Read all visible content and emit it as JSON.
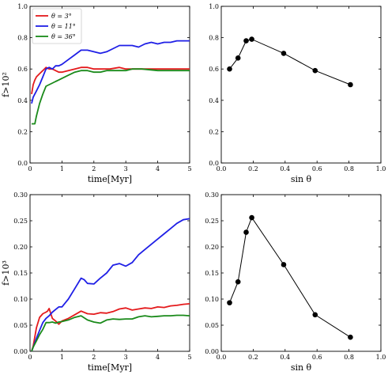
{
  "colors": {
    "red": "#e41a1c",
    "blue": "#1f1fe6",
    "green": "#1a8a1a",
    "black": "#000000"
  },
  "chart_data": [
    {
      "id": "top-left",
      "type": "line",
      "xlabel": "time[Myr]",
      "ylabel": "f>10²",
      "xlim": [
        0,
        5
      ],
      "ylim": [
        0,
        1.0
      ],
      "xticks": [
        0,
        1,
        2,
        3,
        4,
        5
      ],
      "xtick_labels": [
        "0",
        "1",
        "2",
        "3",
        "4",
        "5"
      ],
      "yticks": [
        0,
        0.2,
        0.4,
        0.6,
        0.8,
        1.0
      ],
      "ytick_labels": [
        "0.0",
        "0.2",
        "0.4",
        "0.6",
        "0.8",
        "1.0"
      ],
      "legend": "top-left",
      "series": [
        {
          "name": "θ = 3°",
          "color": "red",
          "x": [
            0.05,
            0.1,
            0.15,
            0.2,
            0.3,
            0.4,
            0.5,
            0.6,
            0.7,
            0.8,
            0.9,
            1.0,
            1.2,
            1.4,
            1.6,
            1.8,
            2.0,
            2.2,
            2.5,
            2.8,
            3.0,
            3.2,
            3.5,
            4.0,
            4.5,
            5.0
          ],
          "y": [
            0.44,
            0.5,
            0.53,
            0.55,
            0.57,
            0.59,
            0.61,
            0.6,
            0.6,
            0.59,
            0.58,
            0.58,
            0.59,
            0.6,
            0.61,
            0.61,
            0.6,
            0.6,
            0.6,
            0.61,
            0.6,
            0.6,
            0.6,
            0.6,
            0.6,
            0.6
          ]
        },
        {
          "name": "θ = 11°",
          "color": "blue",
          "x": [
            0.05,
            0.1,
            0.2,
            0.3,
            0.4,
            0.5,
            0.6,
            0.7,
            0.8,
            0.9,
            1.0,
            1.2,
            1.4,
            1.6,
            1.8,
            2.0,
            2.2,
            2.4,
            2.6,
            2.8,
            3.0,
            3.2,
            3.4,
            3.6,
            3.8,
            4.0,
            4.2,
            4.4,
            4.6,
            4.8,
            5.0
          ],
          "y": [
            0.38,
            0.42,
            0.46,
            0.5,
            0.55,
            0.6,
            0.61,
            0.6,
            0.62,
            0.62,
            0.63,
            0.66,
            0.69,
            0.72,
            0.72,
            0.71,
            0.7,
            0.71,
            0.73,
            0.75,
            0.75,
            0.75,
            0.74,
            0.76,
            0.77,
            0.76,
            0.77,
            0.77,
            0.78,
            0.78,
            0.78
          ]
        },
        {
          "name": "θ = 36°",
          "color": "green",
          "x": [
            0.05,
            0.1,
            0.15,
            0.2,
            0.3,
            0.4,
            0.5,
            0.6,
            0.7,
            0.8,
            0.9,
            1.0,
            1.2,
            1.4,
            1.6,
            1.8,
            2.0,
            2.2,
            2.4,
            2.6,
            2.8,
            3.0,
            3.2,
            3.5,
            4.0,
            4.5,
            5.0
          ],
          "y": [
            0.25,
            0.25,
            0.25,
            0.3,
            0.38,
            0.44,
            0.49,
            0.5,
            0.51,
            0.52,
            0.53,
            0.54,
            0.56,
            0.58,
            0.59,
            0.59,
            0.58,
            0.58,
            0.59,
            0.59,
            0.59,
            0.59,
            0.6,
            0.6,
            0.59,
            0.59,
            0.59
          ]
        }
      ]
    },
    {
      "id": "top-right",
      "type": "scatter",
      "xlabel": "sin θ",
      "ylabel": "",
      "xlim": [
        0,
        1.0
      ],
      "ylim": [
        0,
        1.0
      ],
      "xticks": [
        0,
        0.2,
        0.4,
        0.6,
        0.8,
        1.0
      ],
      "xtick_labels": [
        "0.0",
        "0.2",
        "0.4",
        "0.6",
        "0.8",
        "1.0"
      ],
      "yticks": [
        0,
        0.2,
        0.4,
        0.6,
        0.8,
        1.0
      ],
      "ytick_labels": [
        "0.0",
        "0.2",
        "0.4",
        "0.6",
        "0.8",
        "1.0"
      ],
      "series": [
        {
          "name": "",
          "color": "black",
          "x": [
            0.052,
            0.105,
            0.156,
            0.191,
            0.391,
            0.588,
            0.809
          ],
          "y": [
            0.6,
            0.67,
            0.78,
            0.79,
            0.7,
            0.59,
            0.5
          ]
        }
      ]
    },
    {
      "id": "bottom-left",
      "type": "line",
      "xlabel": "time[Myr]",
      "ylabel": "f>10³",
      "xlim": [
        0,
        5
      ],
      "ylim": [
        0,
        0.3
      ],
      "xticks": [
        0,
        1,
        2,
        3,
        4,
        5
      ],
      "xtick_labels": [
        "0",
        "1",
        "2",
        "3",
        "4",
        "5"
      ],
      "yticks": [
        0,
        0.05,
        0.1,
        0.15,
        0.2,
        0.25,
        0.3
      ],
      "ytick_labels": [
        "0.00",
        "0.05",
        "0.10",
        "0.15",
        "0.20",
        "0.25",
        "0.30"
      ],
      "series": [
        {
          "name": "θ = 3°",
          "color": "red",
          "x": [
            0.05,
            0.1,
            0.2,
            0.3,
            0.4,
            0.5,
            0.55,
            0.6,
            0.65,
            0.7,
            0.8,
            0.9,
            1.0,
            1.2,
            1.4,
            1.6,
            1.8,
            2.0,
            2.2,
            2.4,
            2.6,
            2.8,
            3.0,
            3.2,
            3.4,
            3.6,
            3.8,
            4.0,
            4.2,
            4.4,
            4.6,
            4.8,
            5.0
          ],
          "y": [
            0.0,
            0.01,
            0.045,
            0.065,
            0.072,
            0.075,
            0.077,
            0.082,
            0.072,
            0.063,
            0.058,
            0.052,
            0.058,
            0.063,
            0.07,
            0.077,
            0.072,
            0.071,
            0.074,
            0.073,
            0.076,
            0.081,
            0.083,
            0.079,
            0.081,
            0.083,
            0.082,
            0.085,
            0.084,
            0.087,
            0.088,
            0.09,
            0.091
          ]
        },
        {
          "name": "θ = 11°",
          "color": "blue",
          "x": [
            0.05,
            0.1,
            0.2,
            0.3,
            0.4,
            0.5,
            0.6,
            0.7,
            0.8,
            0.9,
            1.0,
            1.2,
            1.4,
            1.6,
            1.7,
            1.8,
            2.0,
            2.2,
            2.4,
            2.6,
            2.8,
            3.0,
            3.2,
            3.4,
            3.6,
            3.8,
            4.0,
            4.2,
            4.4,
            4.6,
            4.8,
            5.0
          ],
          "y": [
            0.0,
            0.008,
            0.025,
            0.04,
            0.055,
            0.063,
            0.068,
            0.075,
            0.08,
            0.085,
            0.085,
            0.1,
            0.12,
            0.14,
            0.137,
            0.13,
            0.129,
            0.14,
            0.15,
            0.165,
            0.168,
            0.163,
            0.17,
            0.185,
            0.195,
            0.205,
            0.215,
            0.225,
            0.235,
            0.245,
            0.252,
            0.254
          ]
        },
        {
          "name": "θ = 36°",
          "color": "green",
          "x": [
            0.05,
            0.1,
            0.2,
            0.3,
            0.4,
            0.5,
            0.6,
            0.7,
            0.8,
            0.9,
            1.0,
            1.2,
            1.4,
            1.6,
            1.8,
            2.0,
            2.2,
            2.4,
            2.6,
            2.8,
            3.0,
            3.2,
            3.4,
            3.6,
            3.8,
            4.0,
            4.2,
            4.4,
            4.6,
            4.8,
            5.0
          ],
          "y": [
            0.0,
            0.008,
            0.02,
            0.032,
            0.042,
            0.055,
            0.055,
            0.056,
            0.054,
            0.056,
            0.057,
            0.06,
            0.065,
            0.068,
            0.06,
            0.056,
            0.054,
            0.06,
            0.062,
            0.061,
            0.062,
            0.062,
            0.066,
            0.068,
            0.066,
            0.067,
            0.068,
            0.068,
            0.069,
            0.069,
            0.068
          ]
        }
      ]
    },
    {
      "id": "bottom-right",
      "type": "scatter",
      "xlabel": "sin θ",
      "ylabel": "",
      "xlim": [
        0,
        1.0
      ],
      "ylim": [
        0,
        0.3
      ],
      "xticks": [
        0,
        0.2,
        0.4,
        0.6,
        0.8,
        1.0
      ],
      "xtick_labels": [
        "0.0",
        "0.2",
        "0.4",
        "0.6",
        "0.8",
        "1.0"
      ],
      "yticks": [
        0,
        0.05,
        0.1,
        0.15,
        0.2,
        0.25,
        0.3
      ],
      "ytick_labels": [
        "0.00",
        "0.05",
        "0.10",
        "0.15",
        "0.20",
        "0.25",
        "0.30"
      ],
      "series": [
        {
          "name": "",
          "color": "black",
          "x": [
            0.052,
            0.105,
            0.156,
            0.191,
            0.391,
            0.588,
            0.809
          ],
          "y": [
            0.093,
            0.133,
            0.228,
            0.256,
            0.166,
            0.07,
            0.027
          ]
        }
      ]
    }
  ]
}
